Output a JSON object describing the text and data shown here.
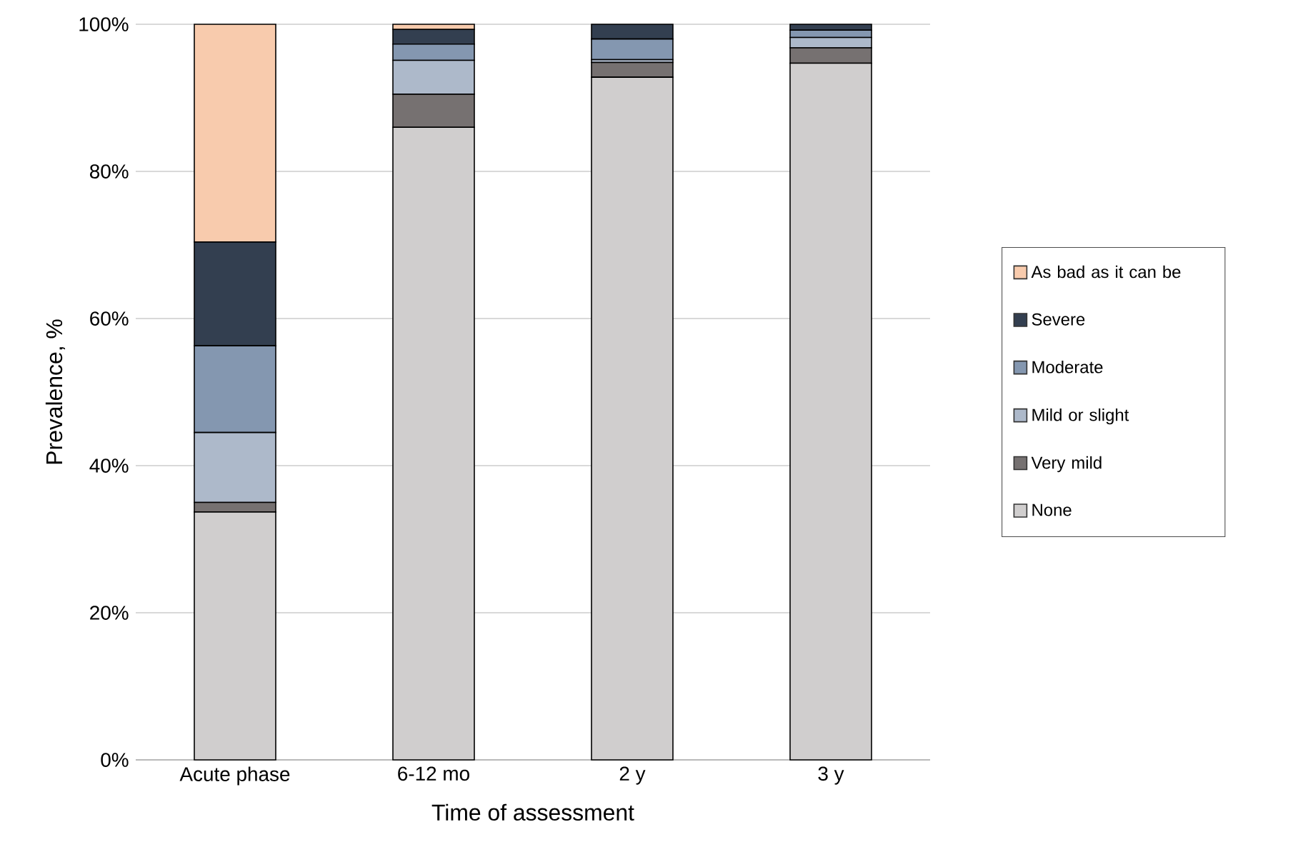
{
  "chart_data": {
    "type": "bar",
    "stacked": true,
    "xlabel": "Time of assessment",
    "ylabel": "Prevalence, %",
    "categories": [
      "Acute phase",
      "6-12 mo",
      "2 y",
      "3 y"
    ],
    "series": [
      {
        "name": "None",
        "color": "#d0cece",
        "values": [
          33.7,
          86.0,
          92.8,
          94.7
        ]
      },
      {
        "name": "Very mild",
        "color": "#767171",
        "values": [
          1.3,
          4.5,
          2.0,
          2.1
        ]
      },
      {
        "name": "Mild or slight",
        "color": "#adb9ca",
        "values": [
          9.5,
          4.6,
          0.4,
          1.4
        ]
      },
      {
        "name": "Moderate",
        "color": "#8497b0",
        "values": [
          11.8,
          2.2,
          2.8,
          1.0
        ]
      },
      {
        "name": "Severe",
        "color": "#333f50",
        "values": [
          14.1,
          2.0,
          2.0,
          0.8
        ]
      },
      {
        "name": "As bad as it can be",
        "color": "#f8cbad",
        "values": [
          29.6,
          0.7,
          0,
          0
        ]
      }
    ],
    "ylim": [
      0,
      100
    ],
    "yticks": [
      {
        "value": 0,
        "label": "0%"
      },
      {
        "value": 20,
        "label": "20%"
      },
      {
        "value": 40,
        "label": "40%"
      },
      {
        "value": 60,
        "label": "60%"
      },
      {
        "value": 80,
        "label": "80%"
      },
      {
        "value": 100,
        "label": "100%"
      }
    ],
    "grid": "y",
    "legend": "right"
  }
}
